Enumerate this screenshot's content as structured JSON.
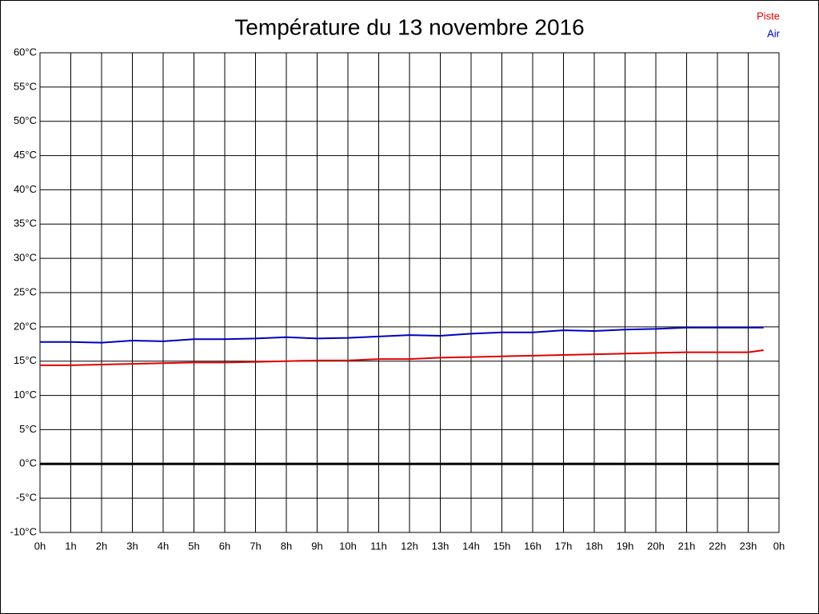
{
  "chart_data": {
    "type": "line",
    "title": "Température du 13 novembre 2016",
    "x": [
      0,
      1,
      2,
      3,
      4,
      5,
      6,
      7,
      8,
      9,
      10,
      11,
      12,
      13,
      14,
      15,
      16,
      17,
      18,
      19,
      20,
      21,
      22,
      23,
      23.5
    ],
    "series": [
      {
        "name": "Piste",
        "color": "#e00000",
        "values": [
          14.4,
          14.4,
          14.5,
          14.6,
          14.7,
          14.8,
          14.8,
          14.9,
          15.0,
          15.1,
          15.1,
          15.3,
          15.3,
          15.5,
          15.6,
          15.7,
          15.8,
          15.9,
          16.0,
          16.1,
          16.2,
          16.3,
          16.3,
          16.3,
          16.6
        ]
      },
      {
        "name": "Air",
        "color": "#0000c0",
        "values": [
          17.8,
          17.8,
          17.7,
          18.0,
          17.9,
          18.2,
          18.2,
          18.3,
          18.5,
          18.3,
          18.4,
          18.6,
          18.8,
          18.7,
          19.0,
          19.2,
          19.2,
          19.5,
          19.4,
          19.6,
          19.7,
          19.9,
          19.9,
          19.9,
          19.9
        ]
      }
    ],
    "xlim": [
      0,
      24
    ],
    "xticks": [
      {
        "value": 0,
        "label": "0h"
      },
      {
        "value": 1,
        "label": "1h"
      },
      {
        "value": 2,
        "label": "2h"
      },
      {
        "value": 3,
        "label": "3h"
      },
      {
        "value": 4,
        "label": "4h"
      },
      {
        "value": 5,
        "label": "5h"
      },
      {
        "value": 6,
        "label": "6h"
      },
      {
        "value": 7,
        "label": "7h"
      },
      {
        "value": 8,
        "label": "8h"
      },
      {
        "value": 9,
        "label": "9h"
      },
      {
        "value": 10,
        "label": "10h"
      },
      {
        "value": 11,
        "label": "11h"
      },
      {
        "value": 12,
        "label": "12h"
      },
      {
        "value": 13,
        "label": "13h"
      },
      {
        "value": 14,
        "label": "14h"
      },
      {
        "value": 15,
        "label": "15h"
      },
      {
        "value": 16,
        "label": "16h"
      },
      {
        "value": 17,
        "label": "17h"
      },
      {
        "value": 18,
        "label": "18h"
      },
      {
        "value": 19,
        "label": "19h"
      },
      {
        "value": 20,
        "label": "20h"
      },
      {
        "value": 21,
        "label": "21h"
      },
      {
        "value": 22,
        "label": "22h"
      },
      {
        "value": 23,
        "label": "23h"
      },
      {
        "value": 24,
        "label": "0h"
      }
    ],
    "ylim": [
      -10,
      60
    ],
    "yticks": [
      {
        "value": -10,
        "label": "-10°C"
      },
      {
        "value": -5,
        "label": "-5°C"
      },
      {
        "value": 0,
        "label": "0°C"
      },
      {
        "value": 5,
        "label": "5°C"
      },
      {
        "value": 10,
        "label": "10°C"
      },
      {
        "value": 15,
        "label": "15°C"
      },
      {
        "value": 20,
        "label": "20°C"
      },
      {
        "value": 25,
        "label": "25°C"
      },
      {
        "value": 30,
        "label": "30°C"
      },
      {
        "value": 35,
        "label": "35°C"
      },
      {
        "value": 40,
        "label": "40°C"
      },
      {
        "value": 45,
        "label": "45°C"
      },
      {
        "value": 50,
        "label": "50°C"
      },
      {
        "value": 55,
        "label": "55°C"
      },
      {
        "value": 60,
        "label": "60°C"
      }
    ],
    "grid": true,
    "zero_line": true,
    "legend": "top-right"
  }
}
